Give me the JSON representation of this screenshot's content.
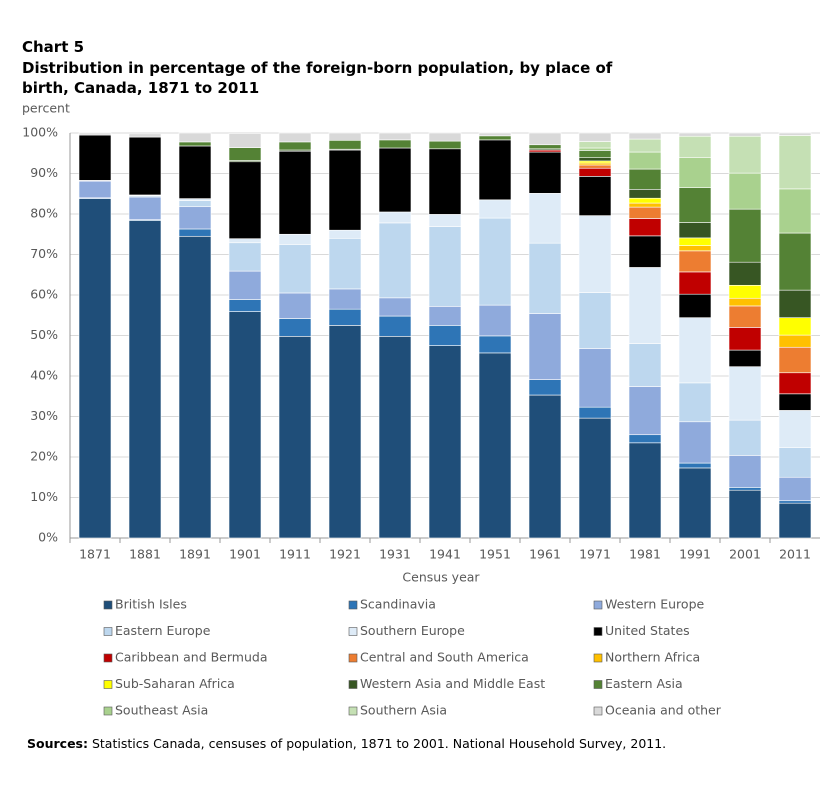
{
  "chart_data": {
    "type": "stacked_bar",
    "title": "Chart 5",
    "subtitle": "Distribution in percentage of the foreign-born population, by place of birth, Canada, 1871 to 2011",
    "y_label": "percent",
    "x_label": "Census year",
    "source": {
      "label": "Sources:",
      "text": "Statistics Canada, censuses of population, 1871 to 2001. National Household Survey, 2011."
    },
    "categories": [
      "1871",
      "1881",
      "1891",
      "1901",
      "1911",
      "1921",
      "1931",
      "1941",
      "1951",
      "1961",
      "1971",
      "1981",
      "1991",
      "2001",
      "2011"
    ],
    "ylim": [
      0,
      100
    ],
    "yticks": [
      {
        "value": 0,
        "label": "0%"
      },
      {
        "value": 10,
        "label": "10%"
      },
      {
        "value": 20,
        "label": "20%"
      },
      {
        "value": 30,
        "label": "30%"
      },
      {
        "value": 40,
        "label": "40%"
      },
      {
        "value": 50,
        "label": "50%"
      },
      {
        "value": 60,
        "label": "60%"
      },
      {
        "value": 70,
        "label": "70%"
      },
      {
        "value": 80,
        "label": "80%"
      },
      {
        "value": 90,
        "label": "90%"
      },
      {
        "value": 100,
        "label": "100%"
      }
    ],
    "grid": true,
    "series": [
      {
        "name": "British Isles",
        "color": "#1f4e79",
        "values": [
          83.8,
          78.4,
          74.5,
          55.9,
          49.8,
          52.5,
          49.8,
          47.5,
          45.7,
          35.3,
          29.6,
          23.5,
          17.3,
          11.8,
          8.6
        ]
      },
      {
        "name": "Scandinavia",
        "color": "#2e75b6",
        "values": [
          0.2,
          0.2,
          1.8,
          3,
          4.4,
          4,
          5,
          5,
          4.2,
          3.8,
          2.7,
          2,
          1.2,
          0.7,
          0.6
        ]
      },
      {
        "name": "Western Europe",
        "color": "#8faadc",
        "values": [
          4.1,
          5.6,
          5.5,
          7,
          6.3,
          5,
          4.5,
          4.7,
          7.6,
          16.3,
          14.5,
          11.9,
          10.2,
          7.9,
          5.8
        ]
      },
      {
        "name": "Eastern Europe",
        "color": "#bdd7ee",
        "values": [
          0.1,
          0.3,
          1.5,
          7,
          12,
          12.5,
          18.5,
          19.7,
          21.5,
          17.4,
          13.8,
          10.6,
          9.6,
          8.7,
          7.3
        ]
      },
      {
        "name": "Southern Europe",
        "color": "#deebf7",
        "values": [
          0.1,
          0.2,
          0.5,
          1,
          2.5,
          2,
          2.7,
          3,
          4.5,
          12.3,
          19,
          18.8,
          16.1,
          13.2,
          9.2
        ]
      },
      {
        "name": "United States",
        "color": "#000000",
        "values": [
          11.2,
          14.3,
          13,
          19,
          20.5,
          19.8,
          15.8,
          16.2,
          14.8,
          10.2,
          9.7,
          7.8,
          5.8,
          4.1,
          4.1
        ]
      },
      {
        "name": "Caribbean and Bermuda",
        "color": "#c00000",
        "values": [
          0,
          0,
          0,
          0,
          0,
          0,
          0,
          0,
          0,
          0.5,
          2,
          4.3,
          5.5,
          5.6,
          5.2
        ]
      },
      {
        "name": "Central and South America",
        "color": "#ed7d31",
        "values": [
          0,
          0,
          0,
          0,
          0,
          0,
          0,
          0,
          0,
          0,
          0.8,
          2.8,
          5.2,
          5.3,
          6.3
        ]
      },
      {
        "name": "Northern Africa",
        "color": "#ffc000",
        "values": [
          0,
          0,
          0,
          0,
          0,
          0,
          0,
          0,
          0,
          0,
          0.5,
          1,
          1.3,
          1.9,
          3
        ]
      },
      {
        "name": "Sub-Saharan Africa",
        "color": "#ffff00",
        "values": [
          0,
          0,
          0,
          0,
          0,
          0,
          0,
          0,
          0,
          0,
          0.5,
          1.2,
          1.9,
          3.2,
          4.3
        ]
      },
      {
        "name": "Western Asia and Middle East",
        "color": "#375623",
        "values": [
          0,
          0,
          0,
          0.3,
          0.3,
          0.2,
          0,
          0,
          0,
          0.3,
          0.8,
          2.2,
          3.8,
          5.7,
          6.8
        ]
      },
      {
        "name": "Eastern Asia",
        "color": "#548235",
        "values": [
          0,
          0,
          1,
          3.2,
          2,
          2.2,
          2,
          1.9,
          1,
          1,
          1.8,
          5,
          8.6,
          13.1,
          14.1
        ]
      },
      {
        "name": "Southeast Asia",
        "color": "#a9d18e",
        "values": [
          0,
          0,
          0,
          0,
          0,
          0,
          0,
          0,
          0,
          0,
          0.6,
          4.2,
          7.4,
          8.9,
          10.9
        ]
      },
      {
        "name": "Southern Asia",
        "color": "#c5e0b4",
        "values": [
          0,
          0,
          0,
          0,
          0,
          0,
          0,
          0,
          0,
          0,
          1.6,
          3.2,
          5.3,
          9.1,
          13.2
        ]
      },
      {
        "name": "Oceania and other",
        "color": "#d9d9d9",
        "values": [
          0.5,
          0.8,
          2.2,
          3.5,
          2.2,
          1.8,
          1.7,
          2,
          0.7,
          2.9,
          2.1,
          1.5,
          0.8,
          0.8,
          0.6
        ]
      }
    ]
  }
}
